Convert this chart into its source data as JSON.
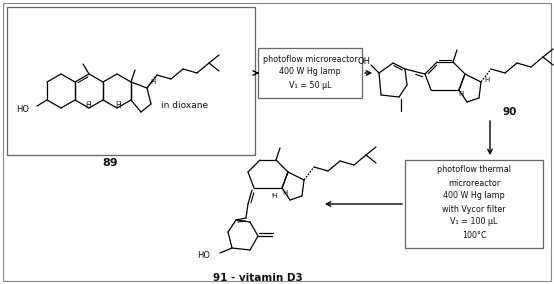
{
  "bg_color": "#ffffff",
  "border_color": "#888888",
  "text_color": "#111111",
  "box1_label": "89",
  "box1_note": "in dioxane",
  "box2_lines": [
    "photoflow microreactor",
    "400 W Hg lamp",
    "V₁ = 50 μL"
  ],
  "label2": "90",
  "box3_lines": [
    "photoflow thermal",
    "microreactor",
    "400 W Hg lamp",
    "with Vycor filter",
    "V₁ = 100 μL",
    "100°C"
  ],
  "label3": "91 - vitamin D3",
  "figsize": [
    5.54,
    2.84
  ],
  "dpi": 100
}
